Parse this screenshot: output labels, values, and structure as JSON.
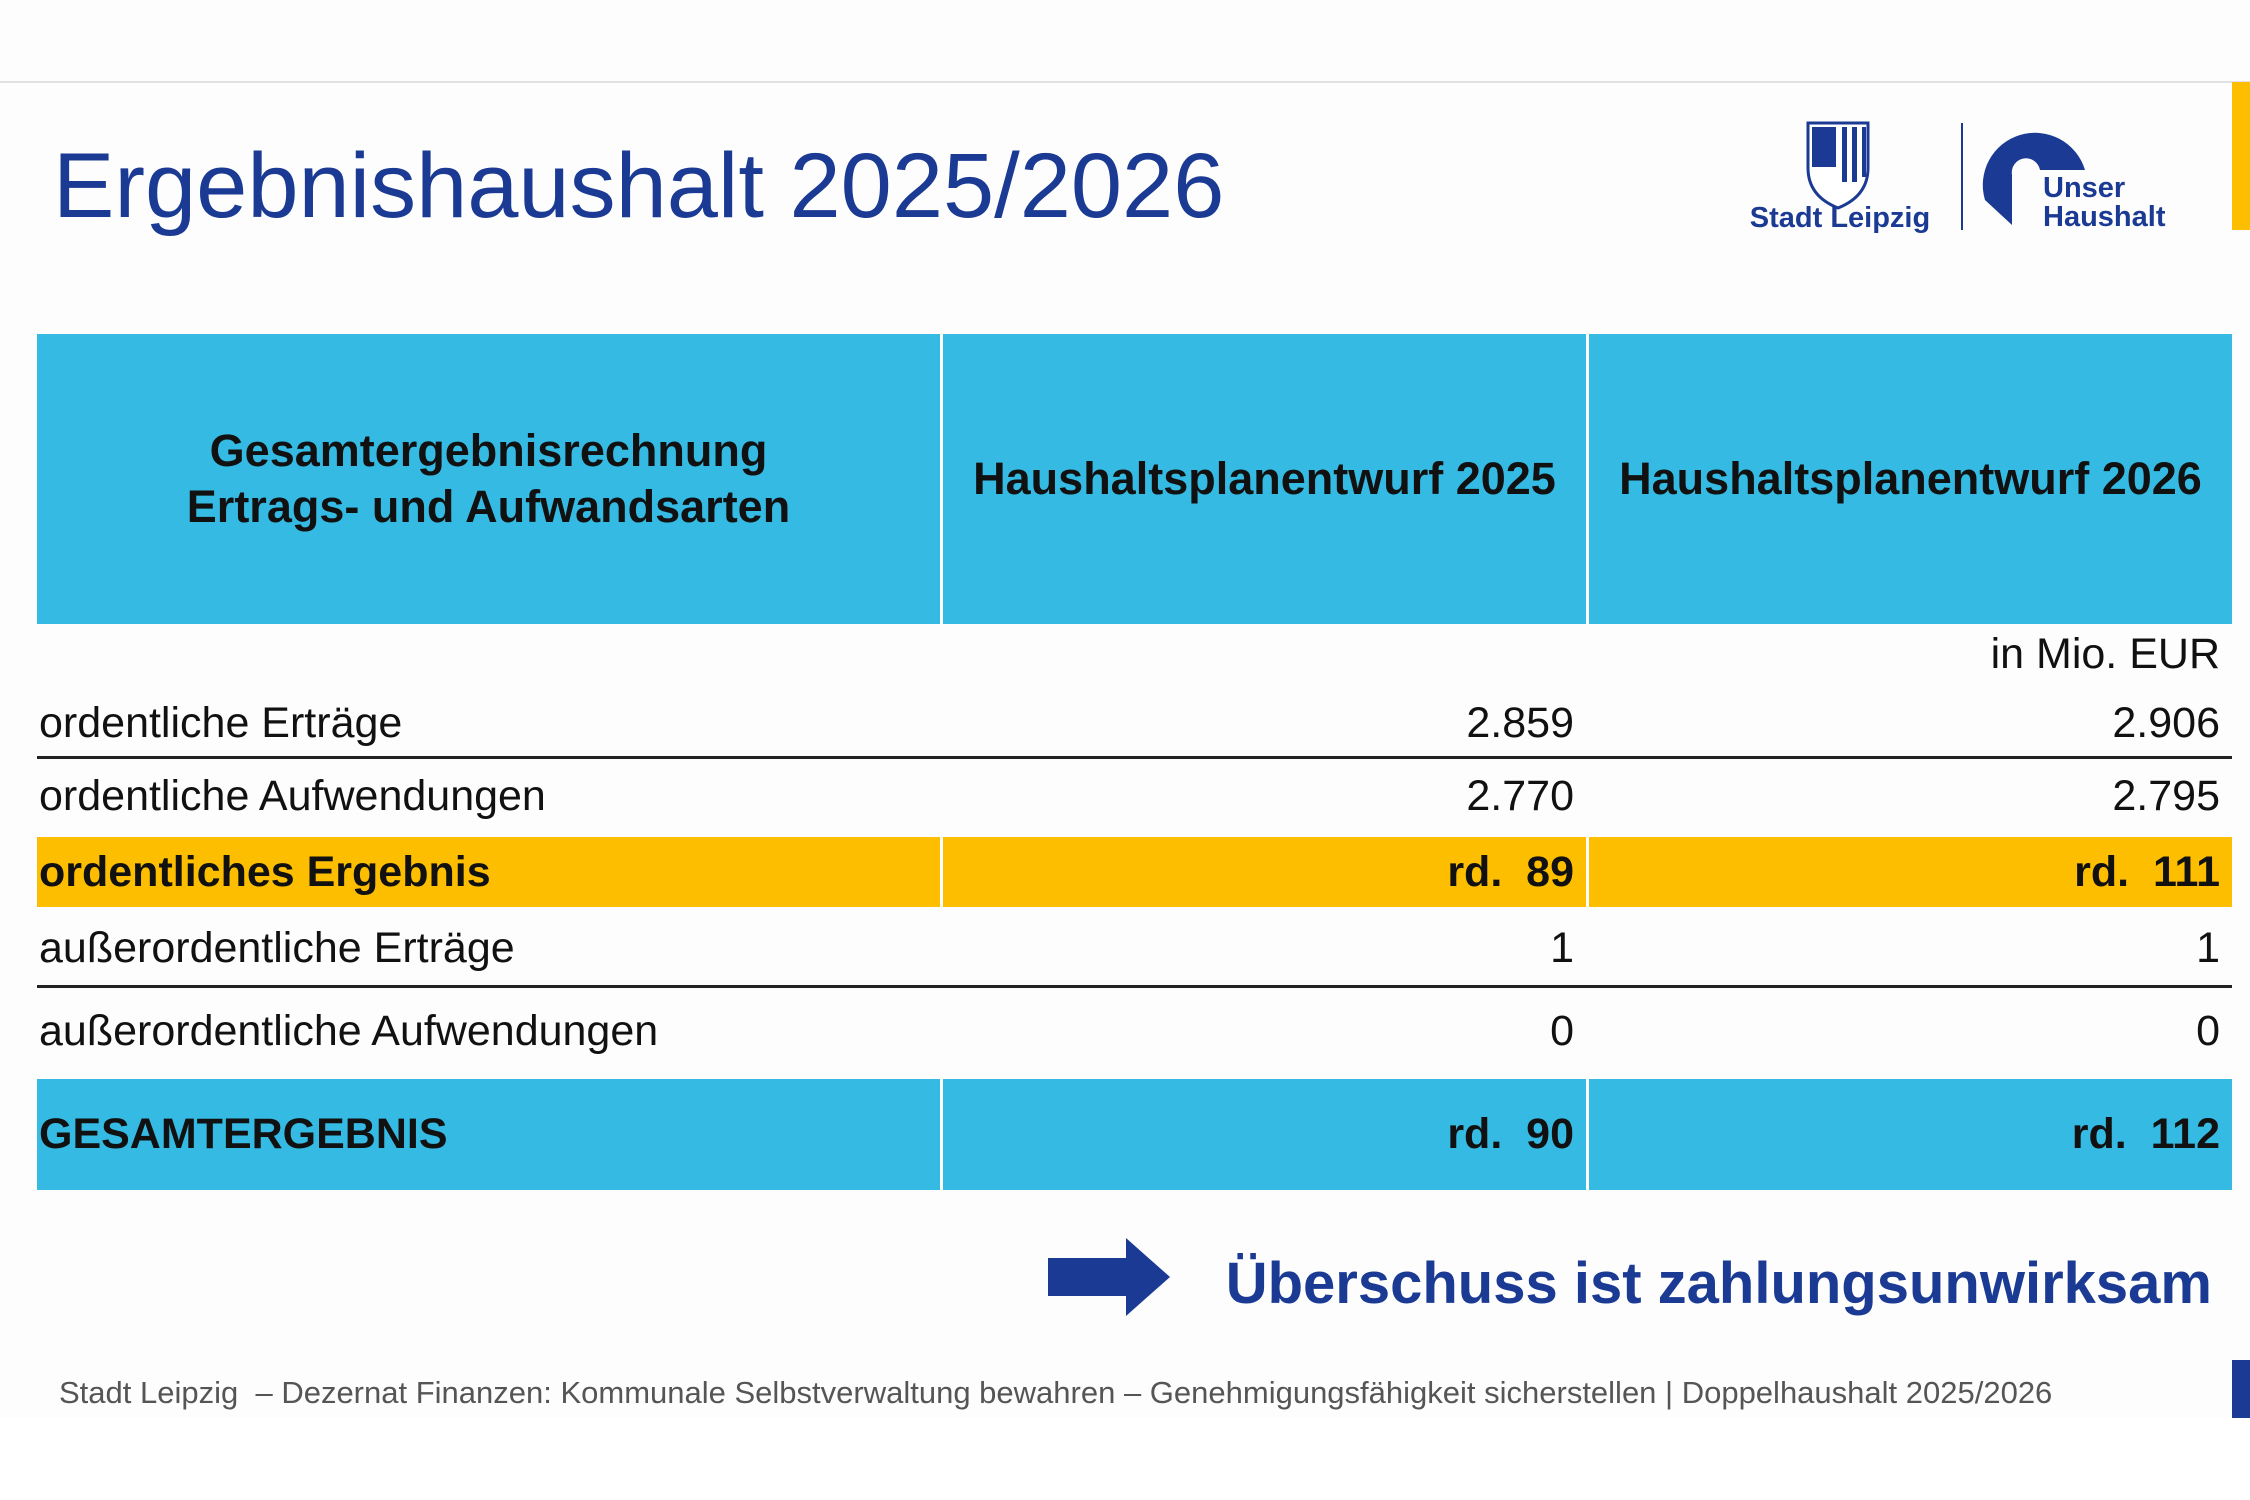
{
  "header": {
    "title": "Ergebnishaushalt 2025/2026",
    "logo_city": "Stadt Leipzig",
    "logo_budget": [
      "Unser",
      "Haushalt"
    ]
  },
  "table": {
    "header": [
      [
        "Gesamtergebnisrechnung",
        "Ertrags- und Aufwandsarten"
      ],
      "Haushaltsplanentwurf 2025",
      "Haushaltsplanentwurf 2026"
    ],
    "unit": "in Mio. EUR",
    "rows": [
      [
        "ordentliche Erträge",
        "2.859",
        "2.906"
      ],
      [
        "ordentliche Aufwendungen",
        "2.770",
        "2.795"
      ],
      [
        "ordentliches Ergebnis",
        "rd.  89",
        "rd.  111"
      ],
      [
        "außerordentliche Erträge",
        "1",
        "1"
      ],
      [
        "außerordentliche Aufwendungen",
        "0",
        "0"
      ],
      [
        "GESAMTERGEBNIS",
        "rd.  90",
        "rd.  112"
      ]
    ]
  },
  "callout": "Überschuss ist zahlungsunwirksam",
  "footer": "Stadt Leipzig  – Dezernat Finanzen: Kommunale Selbstverwaltung bewahren – Genehmigungsfähigkeit sicherstellen | Doppelhaushalt 2025/2026"
}
